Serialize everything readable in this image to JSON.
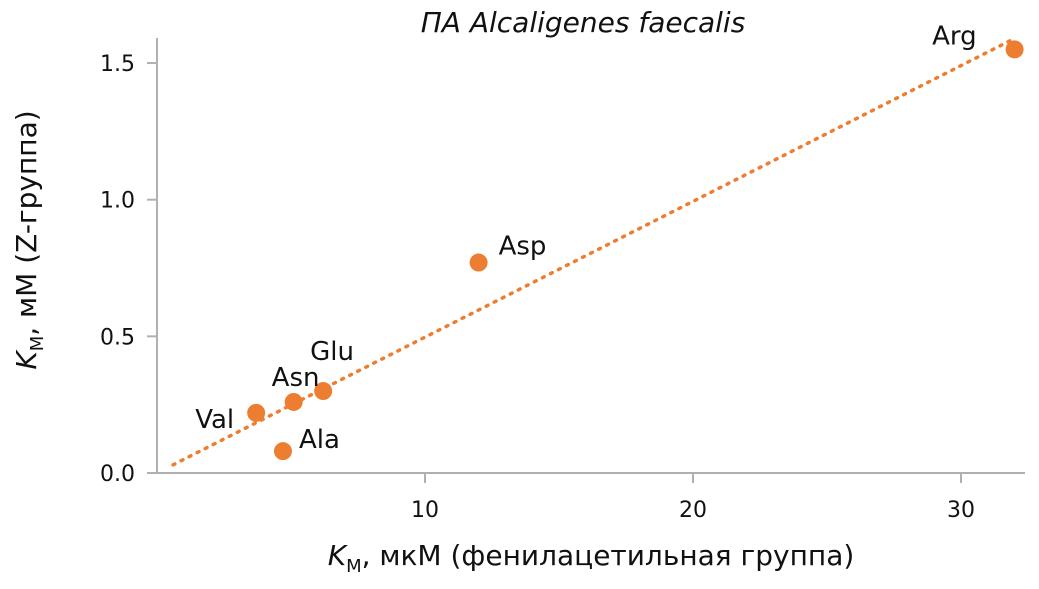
{
  "chart_data": {
    "type": "scatter",
    "title": "ПА Alcaligenes faecalis",
    "xlabel": {
      "k": "K",
      "sub": "M",
      "rest": ", мкМ (фенилацетильная группа)"
    },
    "ylabel": {
      "k": "K",
      "sub": "M",
      "rest": ", мМ (Z-группа)"
    },
    "xlim": [
      0,
      32.5
    ],
    "ylim": [
      0,
      1.6
    ],
    "xticks": [
      10,
      20,
      30
    ],
    "yticks": [
      0.0,
      0.5,
      1.0,
      1.5
    ],
    "xtick_labels": [
      "10",
      "20",
      "30"
    ],
    "ytick_labels": [
      "0.0",
      "0.5",
      "1.0",
      "1.5"
    ],
    "grid": false,
    "marker_color": "#ed7d31",
    "trendline": {
      "style": "dotted",
      "color": "#ed7d31",
      "from": [
        0.6,
        0.03
      ],
      "to": [
        32.0,
        1.59
      ]
    },
    "points": [
      {
        "label": "Val",
        "x": 3.7,
        "y": 0.22
      },
      {
        "label": "Ala",
        "x": 4.7,
        "y": 0.08
      },
      {
        "label": "Asn",
        "x": 5.1,
        "y": 0.26
      },
      {
        "label": "Glu",
        "x": 6.2,
        "y": 0.3
      },
      {
        "label": "Asp",
        "x": 12.0,
        "y": 0.77
      },
      {
        "label": "Arg",
        "x": 32.0,
        "y": 1.55
      }
    ]
  }
}
